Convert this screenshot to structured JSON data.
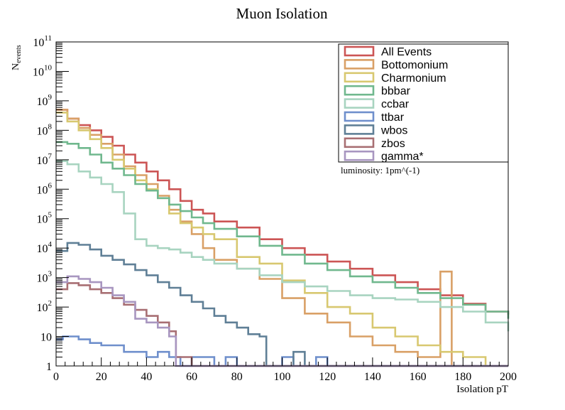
{
  "chart_data": {
    "type": "histogram-step",
    "title": "Muon Isolation",
    "xlabel": "Isolation pT",
    "ylabel_main": "N",
    "ylabel_sub": "events",
    "annotation": "luminosity: 1pm^(-1)",
    "xlim": [
      0,
      200
    ],
    "ylim": [
      1,
      100000000000
    ],
    "yscale": "log",
    "x_ticks": [
      0,
      20,
      40,
      60,
      80,
      100,
      120,
      140,
      160,
      180,
      200
    ],
    "x_tick_labels": [
      "0",
      "20",
      "40",
      "60",
      "80",
      "100",
      "120",
      "140",
      "160",
      "180",
      "200"
    ],
    "y_ticks": [
      {
        "value": 1,
        "base": "1",
        "exp": ""
      },
      {
        "value": 10,
        "base": "10",
        "exp": ""
      },
      {
        "value": 100,
        "base": "10",
        "exp": "2"
      },
      {
        "value": 1000,
        "base": "10",
        "exp": "3"
      },
      {
        "value": 10000,
        "base": "10",
        "exp": "4"
      },
      {
        "value": 100000,
        "base": "10",
        "exp": "5"
      },
      {
        "value": 1000000,
        "base": "10",
        "exp": "6"
      },
      {
        "value": 10000000,
        "base": "10",
        "exp": "7"
      },
      {
        "value": 100000000,
        "base": "10",
        "exp": "8"
      },
      {
        "value": 1000000000,
        "base": "10",
        "exp": "9"
      },
      {
        "value": 10000000000,
        "base": "10",
        "exp": "10"
      },
      {
        "value": 100000000000,
        "base": "10",
        "exp": "11"
      }
    ],
    "grid": false,
    "legend_position": "top-right",
    "series": [
      {
        "name": "All Events",
        "color": "#cc5555",
        "points": [
          [
            0,
            500000000.0
          ],
          [
            5,
            250000000.0
          ],
          [
            10,
            150000000.0
          ],
          [
            15,
            100000000.0
          ],
          [
            20,
            60000000.0
          ],
          [
            25,
            30000000.0
          ],
          [
            30,
            15000000.0
          ],
          [
            35,
            8000000.0
          ],
          [
            40,
            4000000.0
          ],
          [
            45,
            2000000.0
          ],
          [
            50,
            1000000.0
          ],
          [
            55,
            400000.0
          ],
          [
            60,
            200000.0
          ],
          [
            65,
            150000.0
          ],
          [
            70,
            80000.0
          ],
          [
            80,
            50000.0
          ],
          [
            90,
            20000.0
          ],
          [
            100,
            10000.0
          ],
          [
            110,
            6000
          ],
          [
            120,
            3500
          ],
          [
            130,
            2000
          ],
          [
            140,
            1200
          ],
          [
            150,
            700
          ],
          [
            160,
            400
          ],
          [
            170,
            250
          ],
          [
            180,
            130
          ],
          [
            190,
            70
          ],
          [
            200,
            55
          ]
        ]
      },
      {
        "name": "Bottomonium",
        "color": "#d9a066",
        "points": [
          [
            0,
            500000000.0
          ],
          [
            5,
            250000000.0
          ],
          [
            10,
            120000000.0
          ],
          [
            15,
            70000000.0
          ],
          [
            20,
            35000000.0
          ],
          [
            25,
            15000000.0
          ],
          [
            30,
            6000000.0
          ],
          [
            35,
            3000000.0
          ],
          [
            40,
            1500000.0
          ],
          [
            45,
            600000.0
          ],
          [
            50,
            200000.0
          ],
          [
            55,
            80000.0
          ],
          [
            60,
            30000.0
          ],
          [
            65,
            10000.0
          ],
          [
            70,
            4000
          ],
          [
            80,
            2000
          ],
          [
            90,
            900
          ],
          [
            100,
            200
          ],
          [
            110,
            60
          ],
          [
            120,
            30
          ],
          [
            130,
            10
          ],
          [
            140,
            5
          ],
          [
            150,
            3
          ],
          [
            160,
            2
          ],
          [
            170,
            1600
          ],
          [
            175,
            1
          ]
        ]
      },
      {
        "name": "Charmonium",
        "color": "#d8c870",
        "points": [
          [
            0,
            400000000.0
          ],
          [
            5,
            200000000.0
          ],
          [
            10,
            100000000.0
          ],
          [
            15,
            50000000.0
          ],
          [
            20,
            25000000.0
          ],
          [
            25,
            10000000.0
          ],
          [
            30,
            5000000.0
          ],
          [
            35,
            2000000.0
          ],
          [
            40,
            1000000.0
          ],
          [
            45,
            500000.0
          ],
          [
            50,
            150000.0
          ],
          [
            55,
            70000.0
          ],
          [
            60,
            50000.0
          ],
          [
            65,
            30000.0
          ],
          [
            70,
            20000.0
          ],
          [
            80,
            5000
          ],
          [
            90,
            3000
          ],
          [
            100,
            800
          ],
          [
            110,
            300
          ],
          [
            120,
            100
          ],
          [
            130,
            60
          ],
          [
            140,
            20
          ],
          [
            150,
            10
          ],
          [
            160,
            5
          ],
          [
            170,
            3
          ],
          [
            180,
            2
          ],
          [
            190,
            1
          ]
        ]
      },
      {
        "name": "bbbar",
        "color": "#70b88e",
        "points": [
          [
            0,
            40000000.0
          ],
          [
            5,
            35000000.0
          ],
          [
            10,
            25000000.0
          ],
          [
            15,
            15000000.0
          ],
          [
            20,
            8000000.0
          ],
          [
            25,
            5000000.0
          ],
          [
            30,
            3000000.0
          ],
          [
            35,
            1500000.0
          ],
          [
            40,
            900000.0
          ],
          [
            45,
            500000.0
          ],
          [
            50,
            300000.0
          ],
          [
            55,
            180000.0
          ],
          [
            60,
            110000.0
          ],
          [
            65,
            70000.0
          ],
          [
            70,
            45000.0
          ],
          [
            80,
            25000.0
          ],
          [
            90,
            12000.0
          ],
          [
            100,
            6000
          ],
          [
            110,
            3000
          ],
          [
            120,
            1800
          ],
          [
            130,
            1100
          ],
          [
            140,
            700
          ],
          [
            150,
            450
          ],
          [
            160,
            300
          ],
          [
            170,
            200
          ],
          [
            180,
            120
          ],
          [
            190,
            70
          ],
          [
            200,
            40
          ]
        ]
      },
      {
        "name": "ccbar",
        "color": "#a8d4c0",
        "points": [
          [
            0,
            9000000.0
          ],
          [
            5,
            7000000.0
          ],
          [
            10,
            4000000.0
          ],
          [
            15,
            2500000.0
          ],
          [
            20,
            1500000.0
          ],
          [
            25,
            800000.0
          ],
          [
            30,
            150000.0
          ],
          [
            35,
            20000.0
          ],
          [
            40,
            12000.0
          ],
          [
            45,
            10000.0
          ],
          [
            50,
            9000
          ],
          [
            55,
            7000
          ],
          [
            60,
            5000
          ],
          [
            65,
            4000
          ],
          [
            70,
            3000
          ],
          [
            80,
            2000
          ],
          [
            90,
            1200
          ],
          [
            100,
            700
          ],
          [
            110,
            500
          ],
          [
            120,
            350
          ],
          [
            130,
            250
          ],
          [
            140,
            200
          ],
          [
            150,
            180
          ],
          [
            160,
            150
          ],
          [
            170,
            100
          ],
          [
            180,
            70
          ],
          [
            190,
            30
          ],
          [
            200,
            15
          ]
        ]
      },
      {
        "name": "ttbar",
        "color": "#6f8fcc",
        "points": [
          [
            0,
            8
          ],
          [
            3,
            10
          ],
          [
            10,
            8
          ],
          [
            15,
            6
          ],
          [
            20,
            5
          ],
          [
            30,
            3
          ],
          [
            40,
            2
          ],
          [
            45,
            3
          ],
          [
            50,
            2
          ],
          [
            55,
            1
          ],
          [
            60,
            2
          ],
          [
            70,
            1
          ],
          [
            75,
            2
          ],
          [
            80,
            1
          ],
          [
            90,
            1
          ],
          [
            100,
            2
          ],
          [
            105,
            1
          ],
          [
            115,
            2
          ],
          [
            120,
            1
          ],
          [
            130,
            1
          ],
          [
            135,
            1
          ]
        ]
      },
      {
        "name": "wbos",
        "color": "#5f7f96",
        "points": [
          [
            0,
            8000
          ],
          [
            5,
            15000.0
          ],
          [
            10,
            13000.0
          ],
          [
            15,
            9000
          ],
          [
            20,
            5500
          ],
          [
            25,
            4000
          ],
          [
            30,
            2800
          ],
          [
            35,
            1800
          ],
          [
            40,
            1200
          ],
          [
            45,
            700
          ],
          [
            50,
            450
          ],
          [
            55,
            250
          ],
          [
            60,
            150
          ],
          [
            65,
            90
          ],
          [
            70,
            50
          ],
          [
            75,
            30
          ],
          [
            80,
            20
          ],
          [
            85,
            12
          ],
          [
            90,
            10
          ],
          [
            93,
            1
          ],
          [
            100,
            1
          ],
          [
            105,
            3
          ],
          [
            110,
            1
          ]
        ]
      },
      {
        "name": "zbos",
        "color": "#a86f73",
        "points": [
          [
            0,
            400
          ],
          [
            5,
            650
          ],
          [
            10,
            550
          ],
          [
            15,
            400
          ],
          [
            20,
            300
          ],
          [
            25,
            200
          ],
          [
            30,
            120
          ],
          [
            35,
            80
          ],
          [
            40,
            50
          ],
          [
            45,
            30
          ],
          [
            50,
            15
          ],
          [
            53,
            2
          ],
          [
            60,
            1
          ]
        ]
      },
      {
        "name": "gamma*",
        "color": "#a896c0",
        "points": [
          [
            0,
            700
          ],
          [
            5,
            1100
          ],
          [
            10,
            900
          ],
          [
            15,
            700
          ],
          [
            20,
            450
          ],
          [
            25,
            250
          ],
          [
            30,
            150
          ],
          [
            35,
            40
          ],
          [
            40,
            30
          ],
          [
            45,
            20
          ],
          [
            50,
            10
          ],
          [
            53,
            1
          ],
          [
            60,
            1
          ]
        ]
      }
    ]
  }
}
